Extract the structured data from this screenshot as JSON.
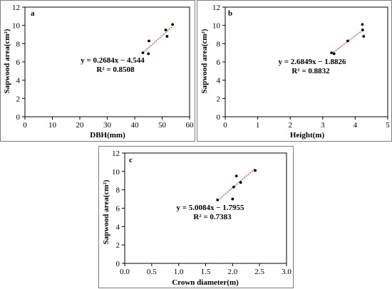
{
  "chart_data": [
    {
      "type": "scatter",
      "panel": "a",
      "xlabel": "DBH(mm)",
      "ylabel": "Sapwood area(cm²)",
      "xlim": [
        0,
        60
      ],
      "ylim": [
        0,
        12
      ],
      "xticks": [
        "0",
        "10",
        "20",
        "30",
        "40",
        "50",
        "60"
      ],
      "yticks": [
        "0",
        "2",
        "4",
        "6",
        "8",
        "10",
        "12"
      ],
      "points": [
        {
          "x": 43.0,
          "y": 7.0
        },
        {
          "x": 45.0,
          "y": 6.9
        },
        {
          "x": 45.2,
          "y": 8.3
        },
        {
          "x": 51.3,
          "y": 9.5
        },
        {
          "x": 51.8,
          "y": 8.8
        },
        {
          "x": 53.8,
          "y": 10.1
        }
      ],
      "trendline": {
        "slope": 0.2684,
        "intercept": -4.544,
        "x_range": [
          43.0,
          53.8
        ],
        "color": "#ff0000",
        "style": "dashed"
      },
      "equation": "y = 0.2684x − 4.544",
      "r2": "R² = 0.8508",
      "grid": false
    },
    {
      "type": "scatter",
      "panel": "b",
      "xlabel": "Height(m)",
      "ylabel": "Sapwood area(cm²)",
      "xlim": [
        0,
        5
      ],
      "ylim": [
        0,
        12
      ],
      "xticks": [
        "0",
        "1",
        "2",
        "3",
        "4",
        "5"
      ],
      "yticks": [
        "0",
        "2",
        "4",
        "6",
        "8",
        "10",
        "12"
      ],
      "points": [
        {
          "x": 3.27,
          "y": 7.0
        },
        {
          "x": 3.35,
          "y": 6.9
        },
        {
          "x": 3.77,
          "y": 8.3
        },
        {
          "x": 4.22,
          "y": 10.1
        },
        {
          "x": 4.23,
          "y": 9.5
        },
        {
          "x": 4.26,
          "y": 8.8
        }
      ],
      "trendline": {
        "slope": 2.6849,
        "intercept": -1.8826,
        "x_range": [
          3.27,
          4.26
        ],
        "color": "#ff0000",
        "style": "dashed"
      },
      "equation": "y = 2.6849x − 1.8826",
      "r2": "R² = 0.8832",
      "grid": false
    },
    {
      "type": "scatter",
      "panel": "c",
      "xlabel": "Crown diameter(m)",
      "ylabel": "Sapwood area(cm²)",
      "xlim": [
        0,
        3
      ],
      "ylim": [
        0,
        12
      ],
      "xticks": [
        "0.0",
        "0.5",
        "1.0",
        "1.5",
        "2.0",
        "2.5",
        "3.0"
      ],
      "yticks": [
        "0",
        "2",
        "4",
        "6",
        "8",
        "10",
        "12"
      ],
      "points": [
        {
          "x": 1.72,
          "y": 6.9
        },
        {
          "x": 2.0,
          "y": 7.0
        },
        {
          "x": 2.02,
          "y": 8.3
        },
        {
          "x": 2.07,
          "y": 9.5
        },
        {
          "x": 2.15,
          "y": 8.8
        },
        {
          "x": 2.42,
          "y": 10.1
        }
      ],
      "trendline": {
        "slope": 5.0084,
        "intercept": -1.7955,
        "x_range": [
          1.72,
          2.42
        ],
        "color": "#ff0000",
        "style": "dashed"
      },
      "equation": "y = 5.0084x − 1.7955",
      "r2": "R² = 0.7383",
      "grid": false
    }
  ]
}
